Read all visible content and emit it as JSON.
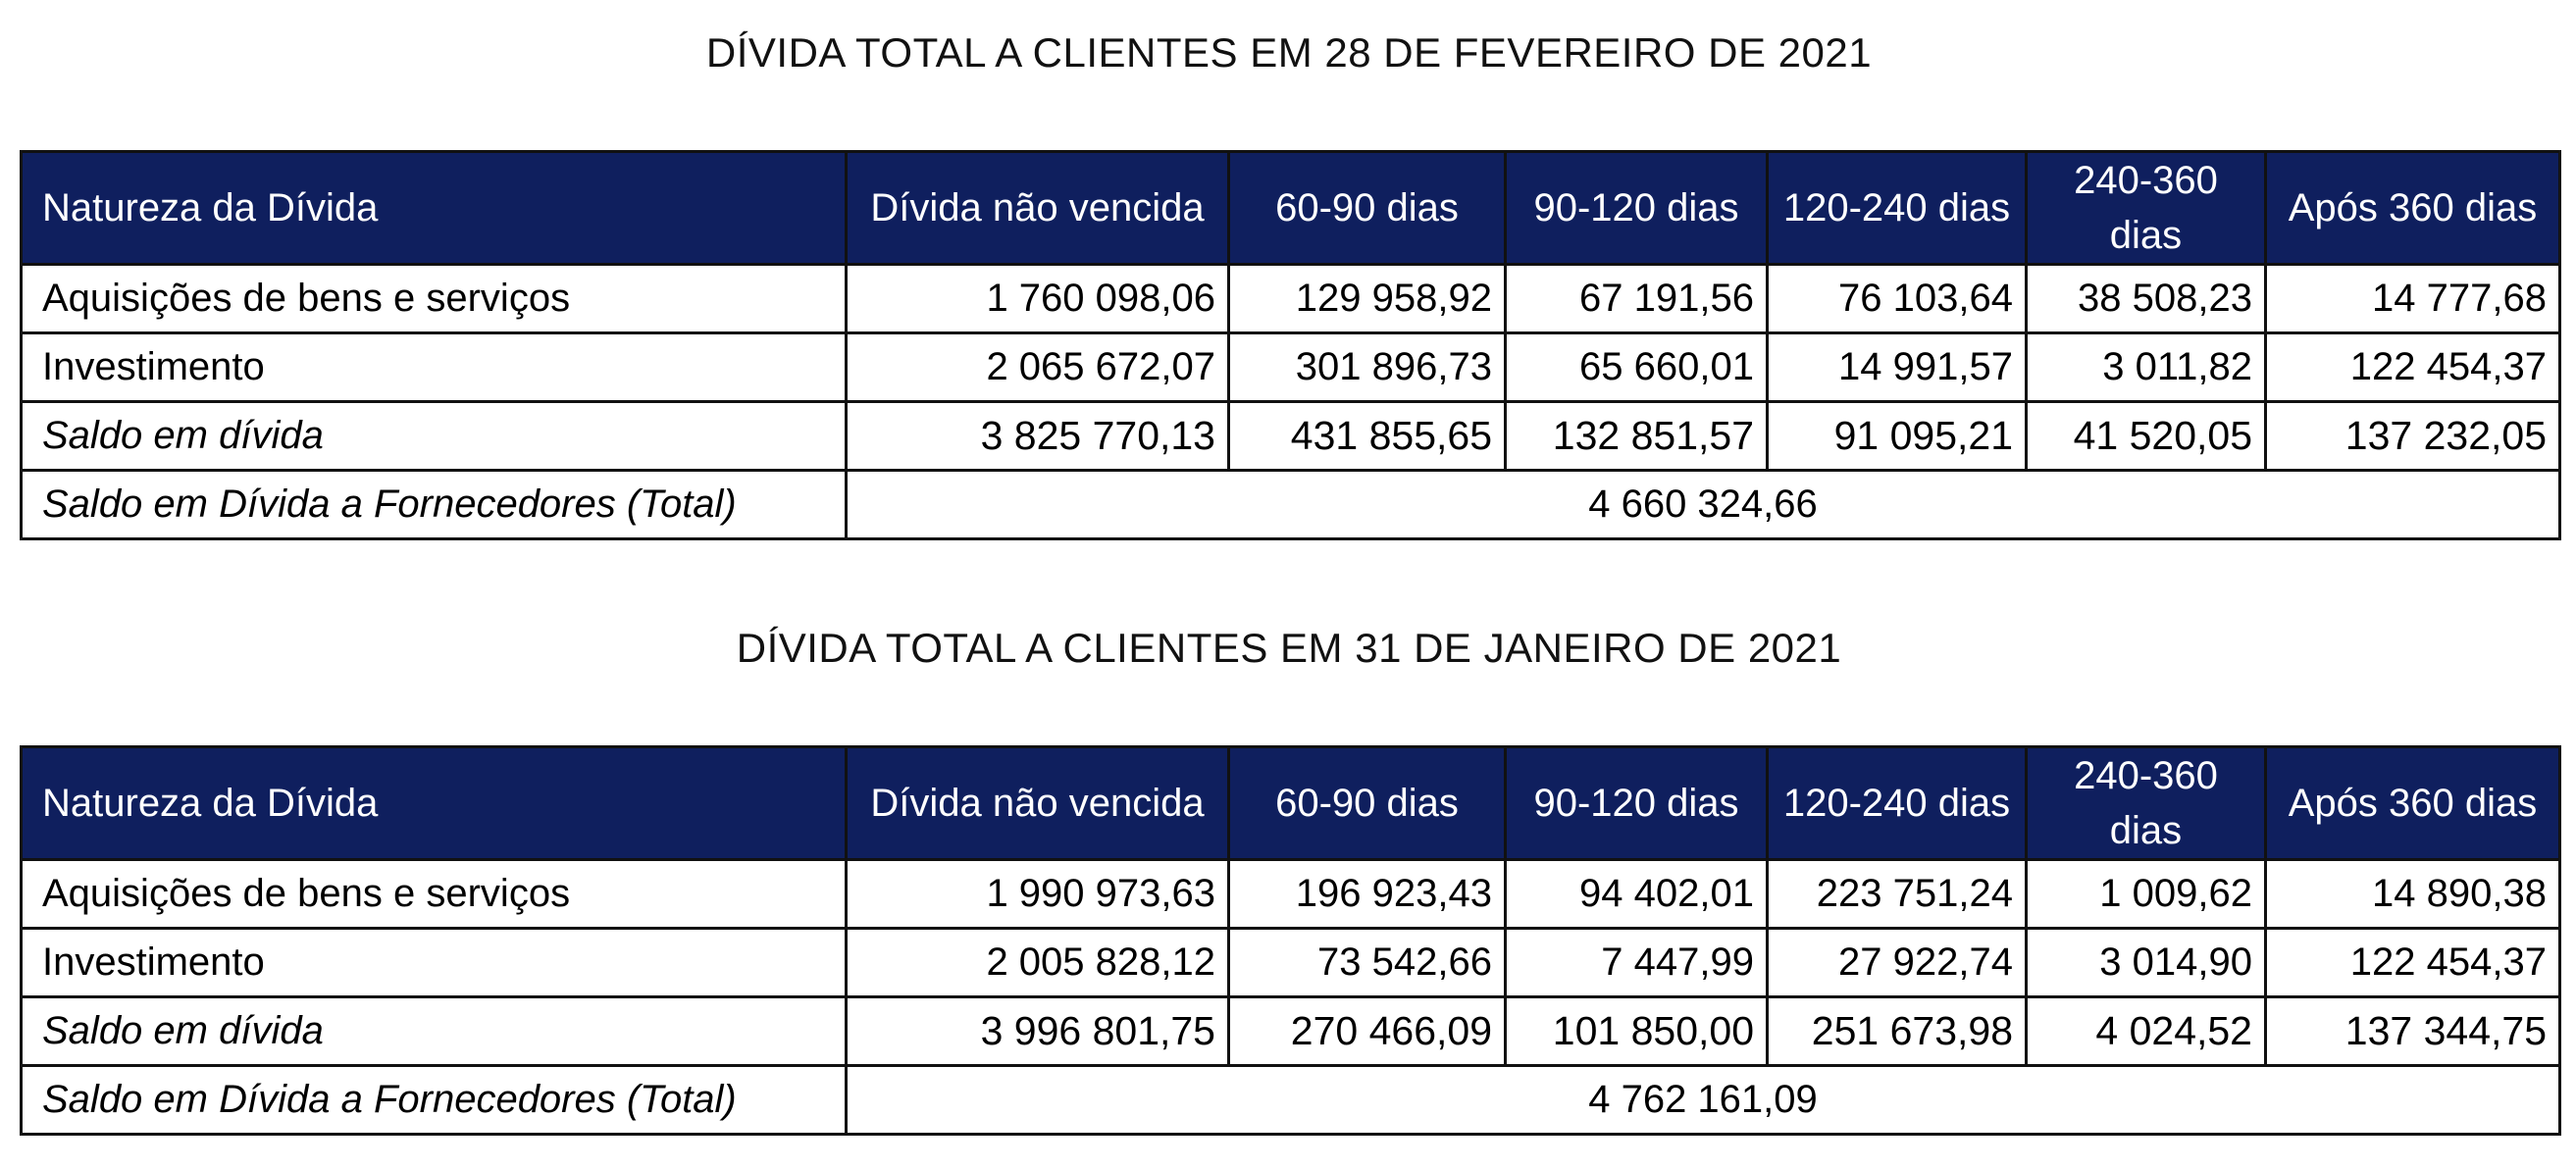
{
  "sections": [
    {
      "title": "DÍVIDA TOTAL A CLIENTES EM 28 DE FEVEREIRO DE 2021",
      "headers": [
        "Natureza da Dívida",
        "Dívida não vencida",
        "60-90 dias",
        "90-120 dias",
        "120-240 dias",
        "240-360 dias",
        "Após 360 dias"
      ],
      "rows": [
        {
          "label": "Aquisições de bens e serviços",
          "values": [
            "1 760 098,06",
            "129 958,92",
            "67 191,56",
            "76 103,64",
            "38 508,23",
            "14 777,68"
          ]
        },
        {
          "label": "Investimento",
          "values": [
            "2 065 672,07",
            "301 896,73",
            "65 660,01",
            "14 991,57",
            "3 011,82",
            "122 454,37"
          ]
        }
      ],
      "subtotal": {
        "label": "Saldo em dívida",
        "values": [
          "3 825 770,13",
          "431 855,65",
          "132 851,57",
          "91 095,21",
          "41 520,05",
          "137 232,05"
        ]
      },
      "total": {
        "label": "Saldo em Dívida a Fornecedores (Total)",
        "value": "4 660 324,66"
      }
    },
    {
      "title": "DÍVIDA TOTAL A CLIENTES EM 31 DE JANEIRO DE 2021",
      "headers": [
        "Natureza da Dívida",
        "Dívida não vencida",
        "60-90 dias",
        "90-120 dias",
        "120-240 dias",
        "240-360 dias",
        "Após 360 dias"
      ],
      "rows": [
        {
          "label": "Aquisições de bens e serviços",
          "values": [
            "1 990 973,63",
            "196 923,43",
            "94 402,01",
            "223 751,24",
            "1 009,62",
            "14 890,38"
          ]
        },
        {
          "label": "Investimento",
          "values": [
            "2 005 828,12",
            "73 542,66",
            "7 447,99",
            "27 922,74",
            "3 014,90",
            "122 454,37"
          ]
        }
      ],
      "subtotal": {
        "label": "Saldo em dívida",
        "values": [
          "3 996 801,75",
          "270 466,09",
          "101 850,00",
          "251 673,98",
          "4 024,52",
          "137 344,75"
        ]
      },
      "total": {
        "label": "Saldo em Dívida a Fornecedores (Total)",
        "value": "4 762 161,09"
      }
    }
  ],
  "colors": {
    "header_bg": "#0f1f5e",
    "header_text": "#ffffff",
    "border": "#111111"
  }
}
